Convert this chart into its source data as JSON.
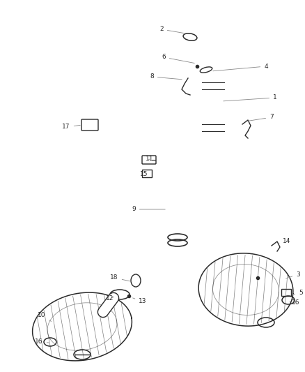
{
  "bg_color": "#ffffff",
  "line_color": "#2a2a2a",
  "label_color": "#2a2a2a",
  "leader_color": "#888888",
  "fig_width": 4.38,
  "fig_height": 5.33,
  "dpi": 100
}
